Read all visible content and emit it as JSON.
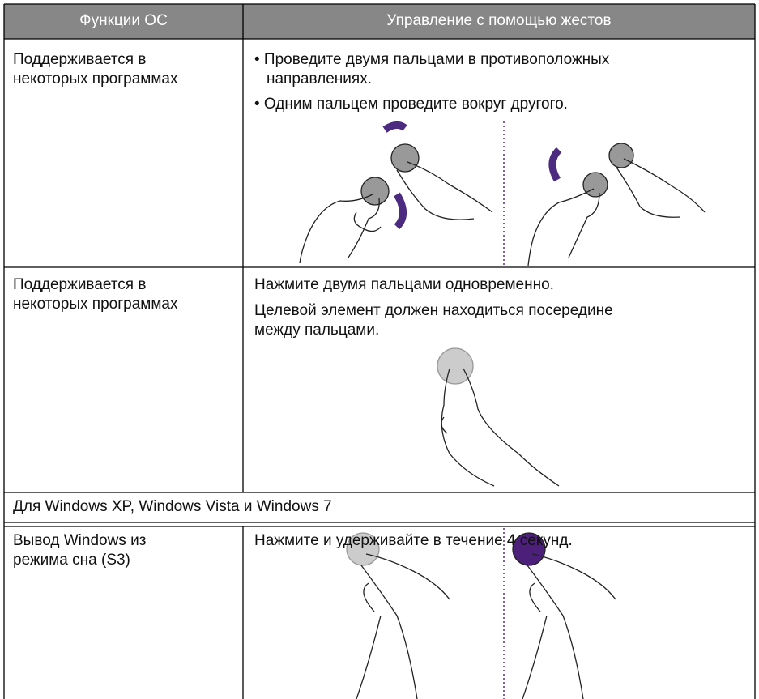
{
  "table": {
    "header": [
      "Функции ОС",
      "Управление с помощью жестов"
    ],
    "rows": [
      {
        "function": [
          "Поддерживается в",
          "некоторых программах"
        ],
        "gesture": [
          "• Проведите двумя пальцами в противоположных",
          "направлениях.",
          "• Одним пальцем проведите вокруг другого."
        ]
      },
      {
        "function": [
          "Поддерживается в",
          "некоторых программах"
        ],
        "gesture": [
          "Нажмите двумя пальцами одновременно.",
          "Целевой элемент должен находиться посередине",
          "между пальцами."
        ]
      }
    ],
    "section": "Для Windows XP, Windows Vista и Windows 7",
    "rows_section": [
      {
        "function": [
          "Вывод Windows из",
          "режима сна (S3)"
        ],
        "gesture": [
          "Нажмите и удерживайте в течение 4 секунд."
        ]
      }
    ]
  }
}
